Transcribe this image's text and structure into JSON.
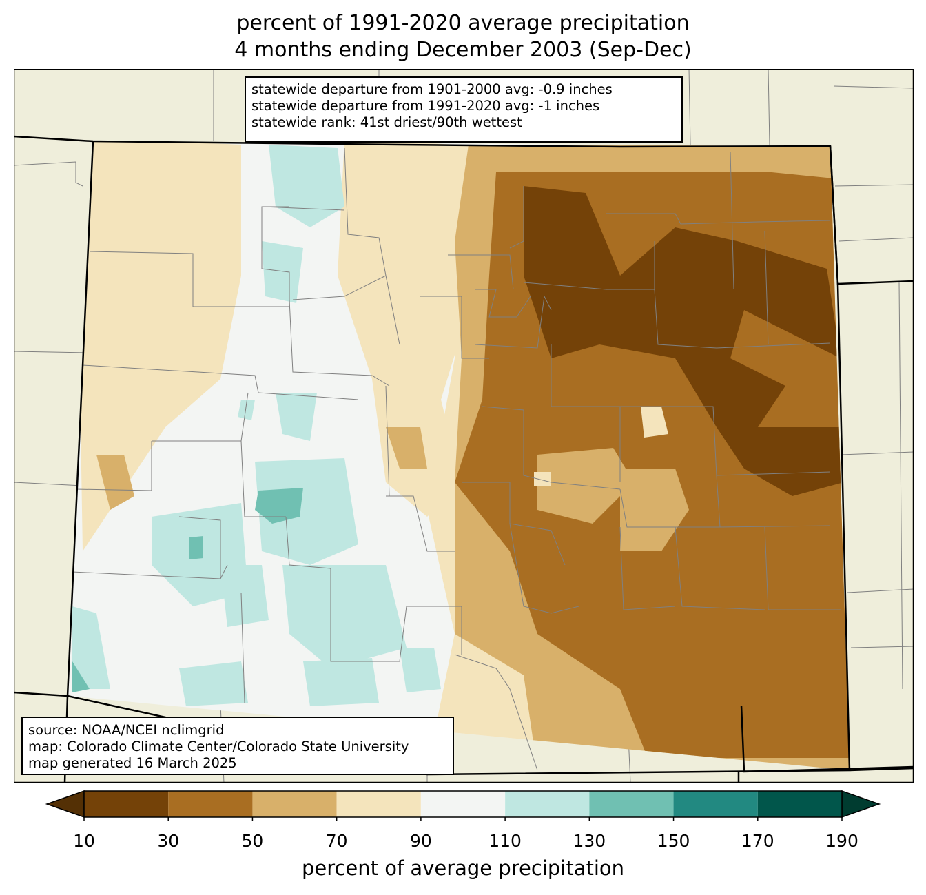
{
  "title_line1": "percent of 1991-2020 average precipitation",
  "title_line2": "4 months ending December 2003 (Sep-Dec)",
  "stats": {
    "line1": "statewide departure from 1901-2000 avg: -0.9 inches",
    "line2": "statewide departure from 1991-2020 avg: -1 inches",
    "line3": "statewide rank: 41st driest/90th wettest"
  },
  "source": {
    "line1": "source: NOAA/NCEI nclimgrid",
    "line2": "map: Colorado Climate Center/Colorado State University",
    "line3": "map generated 16 March 2025"
  },
  "colorbar": {
    "label": "percent of average precipitation",
    "ticks": [
      "10",
      "30",
      "50",
      "70",
      "90",
      "110",
      "130",
      "150",
      "170",
      "190"
    ],
    "under_color": "#543005",
    "over_color": "#003c30",
    "bins": [
      {
        "from": 10,
        "to": 30,
        "color": "#744208"
      },
      {
        "from": 30,
        "to": 50,
        "color": "#a96e22"
      },
      {
        "from": 50,
        "to": 70,
        "color": "#d8b06a"
      },
      {
        "from": 70,
        "to": 90,
        "color": "#f4e4bc"
      },
      {
        "from": 90,
        "to": 110,
        "color": "#f3f5f3"
      },
      {
        "from": 110,
        "to": 130,
        "color": "#bfe7e1"
      },
      {
        "from": 130,
        "to": 150,
        "color": "#70c0b2"
      },
      {
        "from": 150,
        "to": 170,
        "color": "#228981"
      },
      {
        "from": 170,
        "to": 190,
        "color": "#01564b"
      }
    ]
  },
  "map_colors": {
    "background_land": "#efeedb",
    "state_border": "#000000",
    "county_border": "#808080"
  }
}
